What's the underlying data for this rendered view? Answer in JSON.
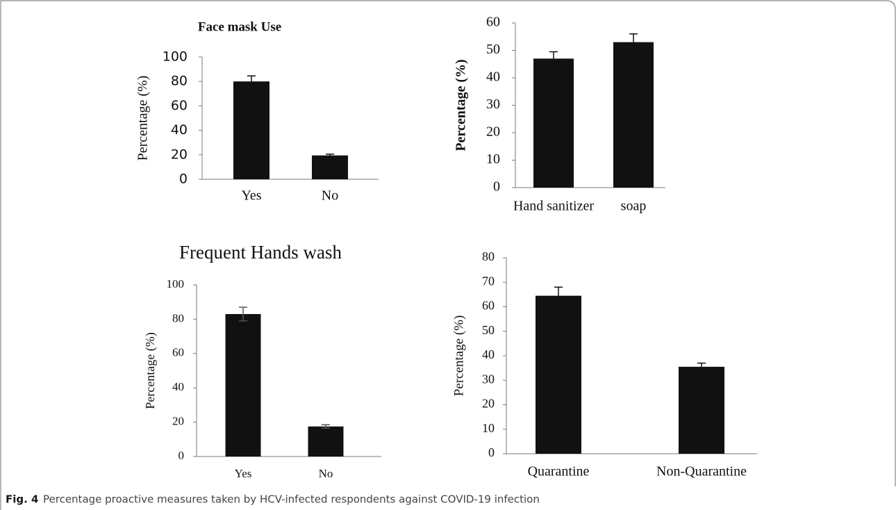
{
  "chart_data": [
    {
      "type": "bar",
      "title": "Face mask Use",
      "ylabel": "Percentage (%)",
      "categories": [
        "Yes",
        "No"
      ],
      "values": [
        80,
        19.5
      ],
      "errors": [
        4.5,
        1
      ],
      "error_style": "upper",
      "color": "#111111",
      "ylim": [
        0,
        100
      ],
      "yticks": [
        0,
        20,
        40,
        60,
        80,
        100
      ]
    },
    {
      "type": "bar",
      "ylabel": "Percentage (%)",
      "categories": [
        "Hand sanitizer",
        "soap"
      ],
      "values": [
        47,
        53
      ],
      "errors": [
        2.5,
        3
      ],
      "error_style": "upper",
      "color": "#111111",
      "ylim": [
        0,
        60
      ],
      "yticks": [
        0,
        10,
        20,
        30,
        40,
        50,
        60
      ]
    },
    {
      "type": "bar",
      "title": "Frequent Hands wash",
      "ylabel": "Percentage (%)",
      "categories": [
        "Yes",
        "No"
      ],
      "values": [
        83,
        17.5
      ],
      "errors": [
        4,
        1
      ],
      "error_style": "both",
      "color": "#111111",
      "ylim": [
        0,
        100
      ],
      "yticks": [
        0,
        20,
        40,
        60,
        80,
        100
      ]
    },
    {
      "type": "bar",
      "ylabel": "Percentage (%)",
      "categories": [
        "Quarantine",
        "Non-Quarantine"
      ],
      "values": [
        64.5,
        35.5
      ],
      "errors": [
        3.5,
        1.5
      ],
      "error_style": "upper",
      "color": "#111111",
      "ylim": [
        0,
        80
      ],
      "yticks": [
        0,
        10,
        20,
        30,
        40,
        50,
        60,
        70,
        80
      ]
    }
  ],
  "caption": {
    "label": "Fig. 4",
    "text": "Percentage proactive measures taken by HCV-infected respondents against COVID-19 infection"
  }
}
